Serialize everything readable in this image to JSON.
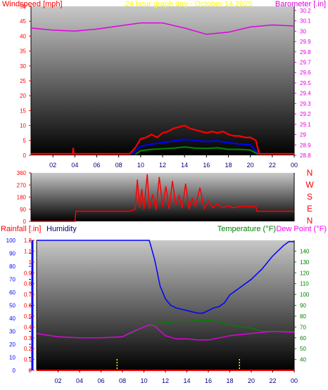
{
  "title": "24 hour graph day - October 14 2025",
  "colors": {
    "background": "#ffffff",
    "gray_top": "#c8c8c8",
    "gray_bottom": "#000000",
    "red": "#ff0000",
    "green": "#008000",
    "blue": "#0000ff",
    "magenta": "#e000e0",
    "dew": "#ff00ff",
    "yellow": "#ffff00"
  },
  "chart_data": [
    {
      "id": "wind",
      "type": "line",
      "title": "24 hour graph day - October 14 2025",
      "ylabel_left": "Windspeed [mph]",
      "ylabel_right": "Barometer [.in]",
      "x_ticks": [
        "02",
        "04",
        "06",
        "08",
        "10",
        "12",
        "14",
        "16",
        "18",
        "20",
        "22",
        "00"
      ],
      "y_left_ticks": [
        "0",
        "5",
        "10",
        "15",
        "20",
        "25",
        "30",
        "35",
        "40",
        "45",
        "50"
      ],
      "ylim_left": [
        0,
        50
      ],
      "y_right_ticks": [
        "28.8",
        "28.9",
        "29",
        "29.1",
        "29.2",
        "29.3",
        "29.4",
        "29.5",
        "29.6",
        "29.7",
        "29.8",
        "29.9",
        "30",
        "30.1",
        "30.2"
      ],
      "ylim_right": [
        28.8,
        30.24
      ],
      "series": [
        {
          "color": "#e000e0",
          "axis": "right",
          "points": [
            [
              0,
              30.03
            ],
            [
              2,
              30.01
            ],
            [
              4,
              30.0
            ],
            [
              6,
              30.02
            ],
            [
              8,
              30.05
            ],
            [
              10,
              30.08
            ],
            [
              12,
              30.08
            ],
            [
              14,
              30.03
            ],
            [
              16,
              29.97
            ],
            [
              18,
              29.99
            ],
            [
              20,
              30.04
            ],
            [
              22,
              30.06
            ],
            [
              24,
              30.05
            ]
          ]
        },
        {
          "color": "#ff0000",
          "axis": "left",
          "points": [
            [
              0,
              0.5
            ],
            [
              3.8,
              0.5
            ],
            [
              3.85,
              2.5
            ],
            [
              3.9,
              0.5
            ],
            [
              9.0,
              0.5
            ],
            [
              9.5,
              2.5
            ],
            [
              10.0,
              5.5
            ],
            [
              10.5,
              6.0
            ],
            [
              11.0,
              7.0
            ],
            [
              11.5,
              6.0
            ],
            [
              12.0,
              7.5
            ],
            [
              12.5,
              8.0
            ],
            [
              13.0,
              9.0
            ],
            [
              13.5,
              9.5
            ],
            [
              14.0,
              10.0
            ],
            [
              14.5,
              9.0
            ],
            [
              15.0,
              8.5
            ],
            [
              15.5,
              8.0
            ],
            [
              16.0,
              7.5
            ],
            [
              16.5,
              8.0
            ],
            [
              17.0,
              7.5
            ],
            [
              17.5,
              8.0
            ],
            [
              18.0,
              7.0
            ],
            [
              18.5,
              6.5
            ],
            [
              19.0,
              6.5
            ],
            [
              19.5,
              6.0
            ],
            [
              20.0,
              6.0
            ],
            [
              20.5,
              5.0
            ],
            [
              20.8,
              0.5
            ],
            [
              24,
              0.5
            ]
          ]
        },
        {
          "color": "#0000ff",
          "axis": "left",
          "points": [
            [
              9.2,
              0.5
            ],
            [
              10.0,
              3.0
            ],
            [
              11.0,
              3.8
            ],
            [
              12.0,
              4.2
            ],
            [
              13.0,
              4.8
            ],
            [
              14.0,
              5.3
            ],
            [
              15.0,
              5.0
            ],
            [
              16.0,
              4.6
            ],
            [
              17.0,
              4.8
            ],
            [
              18.0,
              4.2
            ],
            [
              19.0,
              3.8
            ],
            [
              20.0,
              3.5
            ],
            [
              20.7,
              0.5
            ]
          ]
        },
        {
          "color": "#008000",
          "axis": "left",
          "points": [
            [
              9.5,
              0.3
            ],
            [
              10.0,
              1.5
            ],
            [
              11.0,
              2.0
            ],
            [
              12.0,
              2.2
            ],
            [
              13.0,
              2.4
            ],
            [
              14.0,
              2.8
            ],
            [
              15.0,
              2.4
            ],
            [
              16.0,
              2.3
            ],
            [
              17.0,
              2.5
            ],
            [
              18.0,
              2.0
            ],
            [
              19.0,
              2.0
            ],
            [
              20.0,
              1.8
            ],
            [
              20.7,
              0.3
            ]
          ]
        }
      ]
    },
    {
      "id": "direction",
      "type": "line",
      "ylabel_right": [
        "N",
        "W",
        "S",
        "E",
        "N"
      ],
      "x_ticks": [
        "02",
        "04",
        "06",
        "08",
        "10",
        "12",
        "14",
        "16",
        "18",
        "20",
        "22",
        "00"
      ],
      "y_left_ticks": [
        "0",
        "90",
        "180",
        "270",
        "360"
      ],
      "ylim": [
        0,
        360
      ],
      "series": [
        {
          "color": "#ff0000",
          "points": [
            [
              0,
              0
            ],
            [
              4.0,
              0
            ],
            [
              4.1,
              75
            ],
            [
              9.0,
              75
            ],
            [
              9.5,
              90
            ],
            [
              9.7,
              310
            ],
            [
              9.9,
              100
            ],
            [
              10.1,
              240
            ],
            [
              10.3,
              90
            ],
            [
              10.6,
              350
            ],
            [
              10.8,
              95
            ],
            [
              11.1,
              200
            ],
            [
              11.4,
              85
            ],
            [
              11.7,
              330
            ],
            [
              12.0,
              110
            ],
            [
              12.3,
              260
            ],
            [
              12.6,
              90
            ],
            [
              12.9,
              300
            ],
            [
              13.2,
              120
            ],
            [
              13.5,
              190
            ],
            [
              13.8,
              100
            ],
            [
              14.1,
              280
            ],
            [
              14.4,
              90
            ],
            [
              14.7,
              170
            ],
            [
              15.0,
              110
            ],
            [
              15.4,
              250
            ],
            [
              15.8,
              95
            ],
            [
              16.2,
              150
            ],
            [
              16.6,
              100
            ],
            [
              17.0,
              130
            ],
            [
              17.5,
              100
            ],
            [
              18.0,
              115
            ],
            [
              18.5,
              100
            ],
            [
              19.0,
              110
            ],
            [
              20.5,
              110
            ],
            [
              20.6,
              75
            ],
            [
              24,
              75
            ]
          ]
        }
      ]
    },
    {
      "id": "humidity_temp",
      "type": "line",
      "ylabel_left": "Rainfall [.in]",
      "ylabel_left2": "Humidity",
      "ylabel_right": "Temperature (°F)",
      "ylabel_right2": "Dew Point (°F)",
      "x_ticks": [
        "02",
        "04",
        "06",
        "08",
        "10",
        "12",
        "14",
        "16",
        "18",
        "20",
        "22",
        "00"
      ],
      "y_hum_ticks": [
        "0",
        "10",
        "20",
        "30",
        "40",
        "50",
        "60",
        "70",
        "80",
        "90",
        "100"
      ],
      "ylim_hum": [
        0,
        100
      ],
      "y_rain_ticks": [
        "0",
        "0.1",
        "0.2",
        "0.3",
        "0.4",
        "0.5",
        "0.6",
        "0.7",
        "0.8",
        "0.9",
        "1",
        "1.1",
        "1.2"
      ],
      "ylim_rain": [
        0,
        1.2
      ],
      "y_temp_ticks": [
        "40",
        "50",
        "60",
        "70",
        "80",
        "90",
        "100",
        "110",
        "120",
        "130",
        "140"
      ],
      "ylim_temp": [
        30,
        150
      ],
      "series": [
        {
          "color": "#0000ff",
          "axis": "hum",
          "points": [
            [
              0,
              100
            ],
            [
              10.5,
              100
            ],
            [
              11.0,
              85
            ],
            [
              11.5,
              65
            ],
            [
              12.0,
              55
            ],
            [
              12.5,
              50
            ],
            [
              13.0,
              48
            ],
            [
              14.0,
              46
            ],
            [
              15.0,
              44
            ],
            [
              15.5,
              44
            ],
            [
              16.0,
              46
            ],
            [
              16.5,
              48
            ],
            [
              17.0,
              49
            ],
            [
              17.5,
              52
            ],
            [
              18.0,
              58
            ],
            [
              19.0,
              64
            ],
            [
              20.0,
              70
            ],
            [
              21.0,
              78
            ],
            [
              22.0,
              88
            ],
            [
              23.0,
              96
            ],
            [
              23.5,
              99
            ],
            [
              24,
              99
            ]
          ]
        },
        {
          "color": "#008000",
          "axis": "temp",
          "points": [
            [
              0,
              64
            ],
            [
              2,
              61
            ],
            [
              4,
              60
            ],
            [
              6,
              60
            ],
            [
              8,
              61
            ],
            [
              9,
              65
            ],
            [
              10,
              70
            ],
            [
              11,
              73
            ],
            [
              12,
              74
            ],
            [
              13,
              75
            ],
            [
              14,
              75
            ],
            [
              15,
              76
            ],
            [
              16,
              76
            ],
            [
              17,
              75
            ],
            [
              18,
              72
            ],
            [
              19,
              70
            ],
            [
              20,
              69
            ],
            [
              21,
              66
            ],
            [
              22,
              66
            ],
            [
              24,
              66
            ]
          ]
        },
        {
          "color": "#e000e0",
          "axis": "temp",
          "points": [
            [
              0,
              64
            ],
            [
              2,
              61
            ],
            [
              4,
              60
            ],
            [
              6,
              60
            ],
            [
              8,
              61
            ],
            [
              9,
              66
            ],
            [
              10,
              70
            ],
            [
              10.5,
              72
            ],
            [
              11,
              71
            ],
            [
              12,
              62
            ],
            [
              13,
              59
            ],
            [
              14,
              59
            ],
            [
              15,
              58
            ],
            [
              16,
              58
            ],
            [
              17,
              60
            ],
            [
              18,
              62
            ],
            [
              19,
              63
            ],
            [
              20,
              64
            ],
            [
              21,
              65
            ],
            [
              22,
              66
            ],
            [
              24,
              65
            ]
          ]
        },
        {
          "color": "#ff0000",
          "axis": "rain",
          "points": [
            [
              0,
              0
            ],
            [
              24,
              0
            ]
          ]
        }
      ]
    }
  ]
}
